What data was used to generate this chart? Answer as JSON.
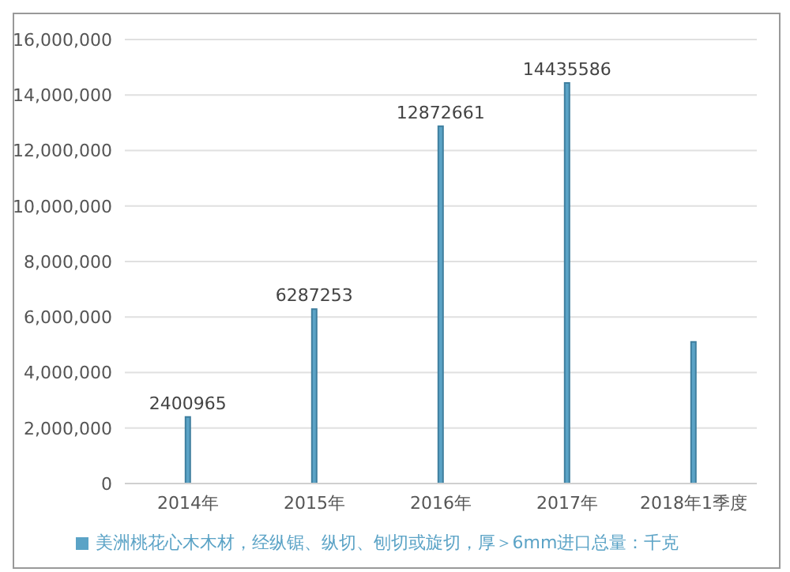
{
  "chart_data": {
    "type": "bar",
    "categories": [
      "2014年",
      "2015年",
      "2016年",
      "2017年",
      "2018年1季度"
    ],
    "series": [
      {
        "name": "美洲桃花心木木材，经纵锯、纵切、刨切或旋切，厚＞6mm进口总量：千克",
        "color": "#5ba3c6",
        "values": [
          2400965,
          6287253,
          12872661,
          14435586,
          5100000
        ],
        "value_labels": [
          "2400965",
          "6287253",
          "12872661",
          "14435586",
          null
        ]
      }
    ],
    "ylim": [
      0,
      16000000
    ],
    "yticks": [
      {
        "value": 0,
        "label": "0"
      },
      {
        "value": 2000000,
        "label": "2,000,000"
      },
      {
        "value": 4000000,
        "label": "4,000,000"
      },
      {
        "value": 6000000,
        "label": "6,000,000"
      },
      {
        "value": 8000000,
        "label": "8,000,000"
      },
      {
        "value": 10000000,
        "label": "10,000,000"
      },
      {
        "value": 12000000,
        "label": "12,000,000"
      },
      {
        "value": 14000000,
        "label": "14,000,000"
      },
      {
        "value": 16000000,
        "label": "16,000,000"
      }
    ],
    "grid": "y",
    "legend": "bottom"
  }
}
